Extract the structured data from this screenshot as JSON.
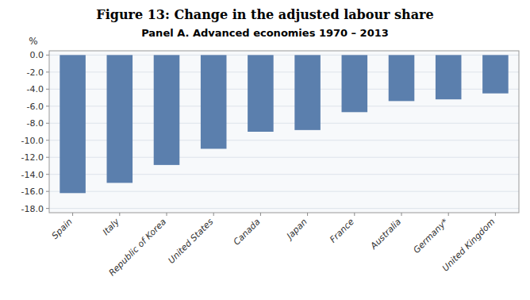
{
  "chart_data": {
    "type": "bar",
    "title": "Figure 13:  Change in the adjusted labour share",
    "subtitle": "Panel A.  Advanced economies 1970 – 2013",
    "ylabel": "%",
    "categories": [
      "Spain",
      "Italy",
      "Republic of Korea",
      "United States",
      "Canada",
      "Japan",
      "France",
      "Australia",
      "Germany*",
      "United Kingdom"
    ],
    "values": [
      -16.2,
      -15.0,
      -12.9,
      -11.0,
      -9.0,
      -8.8,
      -6.7,
      -5.4,
      -5.2,
      -4.5
    ],
    "color": "#5b7fad",
    "ylim": [
      -18.5,
      0.5
    ],
    "yticks": [
      {
        "value": 0.0,
        "label": "0.0"
      },
      {
        "value": -2.0,
        "label": "-2.0"
      },
      {
        "value": -4.0,
        "label": "-4.0"
      },
      {
        "value": -6.0,
        "label": "-6.0"
      },
      {
        "value": -8.0,
        "label": "-8.0"
      },
      {
        "value": -10.0,
        "label": "-10.0"
      },
      {
        "value": -12.0,
        "label": "-12.0"
      },
      {
        "value": -14.0,
        "label": "-14.0"
      },
      {
        "value": -16.0,
        "label": "-16.0"
      },
      {
        "value": -18.0,
        "label": "-18.0"
      }
    ],
    "grid": true
  }
}
